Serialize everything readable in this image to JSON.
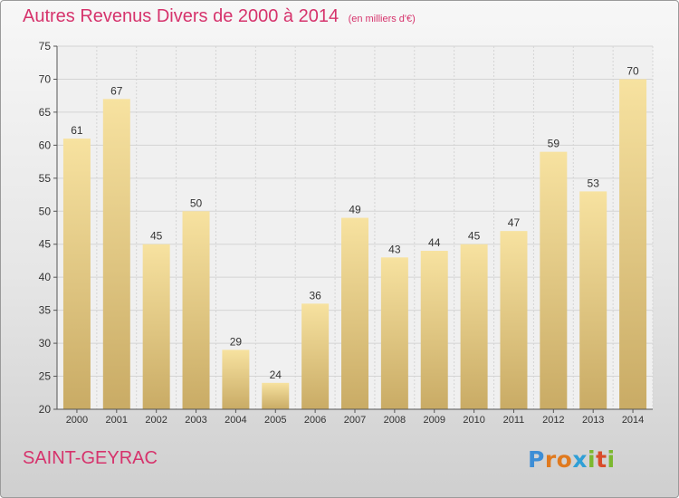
{
  "chart_data": {
    "type": "bar",
    "title": "Autres Revenus Divers de 2000 à 2014",
    "subtitle": "(en milliers d'€)",
    "categories": [
      "2000",
      "2001",
      "2002",
      "2003",
      "2004",
      "2005",
      "2006",
      "2007",
      "2008",
      "2009",
      "2010",
      "2011",
      "2012",
      "2013",
      "2014"
    ],
    "values": [
      61,
      67,
      45,
      50,
      29,
      24,
      36,
      49,
      43,
      44,
      45,
      47,
      59,
      53,
      70
    ],
    "ylim": [
      20,
      75
    ],
    "yticks": [
      20,
      25,
      30,
      35,
      40,
      45,
      50,
      55,
      60,
      65,
      70,
      75
    ],
    "grid": true,
    "data_labels": true
  },
  "footer": {
    "commune": "SAINT-GEYRAC",
    "logo_text": "Proxiti"
  },
  "colors": {
    "title": "#d6336c",
    "bar_light": "#f7e2a0",
    "bar_dark": "#c9ab65"
  }
}
